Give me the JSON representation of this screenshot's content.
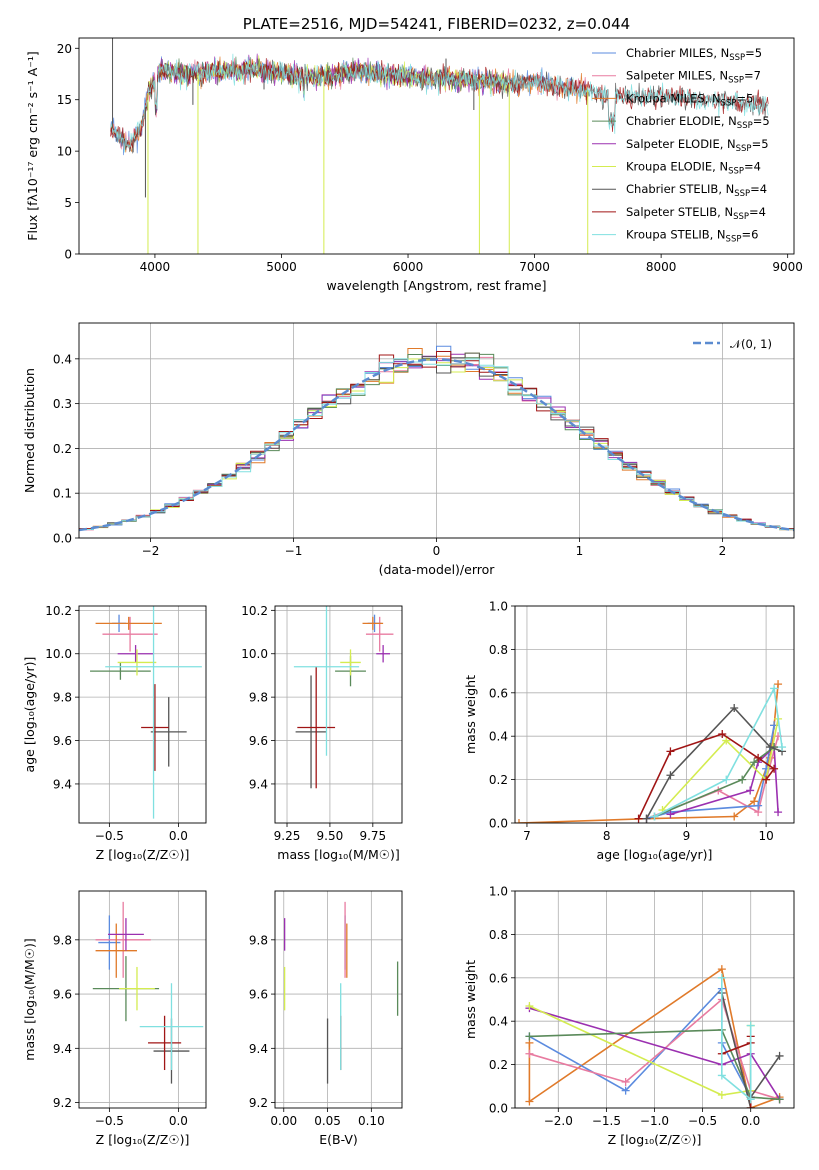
{
  "colors": {
    "chabrier_miles": "#5b8bdf",
    "salpeter_miles": "#e87ba0",
    "kroupa_miles": "#e07a2a",
    "chabrier_elodie": "#5a8a5a",
    "salpeter_elodie": "#9b30b0",
    "kroupa_elodie": "#d4ec50",
    "chabrier_stelib": "#555555",
    "salpeter_stelib": "#a01515",
    "kroupa_stelib": "#80e0e0"
  },
  "chart_data": [
    {
      "id": "spectrum",
      "type": "line",
      "title": "PLATE=2516, MJD=54241, FIBERID=0232, z=0.044",
      "xlabel": "wavelength [Angstrom, rest frame]",
      "ylabel": "Flux [fλ10⁻¹⁷ erg cm⁻² s⁻¹ A⁻¹]",
      "xlim": [
        3400,
        9050
      ],
      "ylim": [
        0,
        21
      ],
      "xticks": [
        "4000",
        "5000",
        "6000",
        "7000",
        "8000",
        "9000"
      ],
      "yticks": [
        "0",
        "5",
        "10",
        "15",
        "20"
      ],
      "legend_position": "top-right",
      "legend": [
        {
          "key": "chabrier_miles",
          "label": "Chabrier MILES, N",
          "sub": "SSP",
          "tail": "=5"
        },
        {
          "key": "salpeter_miles",
          "label": "Salpeter MILES, N",
          "sub": "SSP",
          "tail": "=7"
        },
        {
          "key": "kroupa_miles",
          "label": "Kroupa MILES, N",
          "sub": "SSP",
          "tail": "=5"
        },
        {
          "key": "chabrier_elodie",
          "label": "Chabrier ELODIE, N",
          "sub": "SSP",
          "tail": "=5"
        },
        {
          "key": "salpeter_elodie",
          "label": "Salpeter ELODIE, N",
          "sub": "SSP",
          "tail": "=5"
        },
        {
          "key": "kroupa_elodie",
          "label": "Kroupa ELODIE, N",
          "sub": "SSP",
          "tail": "=4"
        },
        {
          "key": "chabrier_stelib",
          "label": "Chabrier STELIB, N",
          "sub": "SSP",
          "tail": "=4"
        },
        {
          "key": "salpeter_stelib",
          "label": "Salpeter STELIB, N",
          "sub": "SSP",
          "tail": "=4"
        },
        {
          "key": "kroupa_stelib",
          "label": "Kroupa STELIB, N",
          "sub": "SSP",
          "tail": "=6"
        }
      ],
      "continuum": [
        [
          3650,
          12.5
        ],
        [
          3700,
          11.5
        ],
        [
          3800,
          10.5
        ],
        [
          3900,
          12.5
        ],
        [
          3950,
          16.0
        ],
        [
          4050,
          18.0
        ],
        [
          4200,
          17.5
        ],
        [
          4500,
          17.8
        ],
        [
          4800,
          18.0
        ],
        [
          5000,
          17.5
        ],
        [
          5300,
          17.2
        ],
        [
          5600,
          17.8
        ],
        [
          6000,
          17.2
        ],
        [
          6500,
          17.0
        ],
        [
          6800,
          16.5
        ],
        [
          7000,
          16.8
        ],
        [
          7200,
          16.2
        ],
        [
          7400,
          16.0
        ],
        [
          7500,
          15.5
        ],
        [
          8000,
          15.3
        ],
        [
          8500,
          14.8
        ],
        [
          8850,
          14.5
        ]
      ],
      "model_ranges": {
        "miles": [
          3650,
          7420
        ],
        "elodie": [
          3950,
          6800
        ],
        "stelib": [
          3650,
          8850
        ]
      },
      "spikes": [
        [
          3665,
          21
        ],
        [
          3925,
          5.5
        ],
        [
          3945,
          0
        ],
        [
          4102,
          18.5
        ],
        [
          4300,
          14.5
        ],
        [
          4340,
          0
        ],
        [
          4862,
          16
        ],
        [
          5335,
          0
        ],
        [
          6300,
          19
        ],
        [
          6520,
          14
        ],
        [
          6564,
          0
        ],
        [
          6800,
          0
        ],
        [
          7420,
          0
        ]
      ]
    },
    {
      "id": "residuals",
      "type": "histogram",
      "xlabel": "(data-model)/error",
      "ylabel": "Normed distribution",
      "xlim": [
        -2.5,
        2.5
      ],
      "ylim": [
        0,
        0.48
      ],
      "xticks": [
        "−2",
        "−1",
        "0",
        "1",
        "2"
      ],
      "yticks": [
        "0.0",
        "0.1",
        "0.2",
        "0.3",
        "0.4"
      ],
      "bin_width": 0.1,
      "legend_position": "top-right",
      "reference_curve": "normal",
      "legend_label": "𝒩(0, 1)"
    },
    {
      "id": "age_vs_z",
      "type": "errorbar",
      "xlabel": "Z [log₁₀(Z/Z☉)]",
      "ylabel": "age  [log₁₀(age/yr)]",
      "xlim": [
        -0.72,
        0.2
      ],
      "ylim": [
        9.22,
        10.22
      ],
      "xticks": [
        "−0.5",
        "0.0"
      ],
      "yticks": [
        "9.4",
        "9.6",
        "9.8",
        "10.0",
        "10.2"
      ],
      "points": [
        {
          "key": "chabrier_miles",
          "x": -0.43,
          "y": 10.14,
          "xerr": 0.05,
          "yerr": 0.04
        },
        {
          "key": "salpeter_miles",
          "x": -0.35,
          "y": 10.09,
          "xerr": 0.2,
          "yerr": 0.08
        },
        {
          "key": "kroupa_miles",
          "x": -0.36,
          "y": 10.14,
          "xerr": 0.24,
          "yerr": 0.03
        },
        {
          "key": "chabrier_elodie",
          "x": -0.42,
          "y": 9.92,
          "xerr": 0.22,
          "yerr": 0.04
        },
        {
          "key": "salpeter_elodie",
          "x": -0.31,
          "y": 10.0,
          "xerr": 0.13,
          "yerr": 0.04
        },
        {
          "key": "kroupa_elodie",
          "x": -0.3,
          "y": 9.96,
          "xerr": 0.14,
          "yerr": 0.06
        },
        {
          "key": "chabrier_stelib",
          "x": -0.07,
          "y": 9.64,
          "xerr": 0.13,
          "yerr": 0.16
        },
        {
          "key": "salpeter_stelib",
          "x": -0.17,
          "y": 9.66,
          "xerr": 0.1,
          "yerr": 0.2
        },
        {
          "key": "kroupa_stelib",
          "x": -0.18,
          "y": 9.94,
          "xerr": 0.35,
          "yerr": 0.7
        }
      ]
    },
    {
      "id": "age_vs_mass",
      "type": "errorbar",
      "xlabel": "mass [log₁₀(M/M☉)]",
      "ylabel": "",
      "xlim": [
        9.18,
        9.92
      ],
      "ylim": [
        9.22,
        10.22
      ],
      "xticks": [
        "9.25",
        "9.50",
        "9.75"
      ],
      "yticks": [
        "9.4",
        "9.6",
        "9.8",
        "10.0",
        "10.2"
      ],
      "points": [
        {
          "key": "chabrier_miles",
          "x": 9.76,
          "y": 10.14,
          "xerr": 0.04,
          "yerr": 0.04
        },
        {
          "key": "salpeter_miles",
          "x": 9.79,
          "y": 10.09,
          "xerr": 0.08,
          "yerr": 0.08
        },
        {
          "key": "kroupa_miles",
          "x": 9.75,
          "y": 10.14,
          "xerr": 0.06,
          "yerr": 0.03
        },
        {
          "key": "chabrier_elodie",
          "x": 9.62,
          "y": 9.92,
          "xerr": 0.09,
          "yerr": 0.07
        },
        {
          "key": "salpeter_elodie",
          "x": 9.81,
          "y": 10.0,
          "xerr": 0.04,
          "yerr": 0.04
        },
        {
          "key": "kroupa_elodie",
          "x": 9.62,
          "y": 9.96,
          "xerr": 0.06,
          "yerr": 0.06
        },
        {
          "key": "chabrier_stelib",
          "x": 9.39,
          "y": 9.64,
          "xerr": 0.09,
          "yerr": 0.26
        },
        {
          "key": "salpeter_stelib",
          "x": 9.42,
          "y": 9.66,
          "xerr": 0.11,
          "yerr": 0.28
        },
        {
          "key": "kroupa_stelib",
          "x": 9.48,
          "y": 9.94,
          "xerr": 0.19,
          "yerr": 0.41
        }
      ]
    },
    {
      "id": "weight_vs_age",
      "type": "line",
      "xlabel": "age  [log₁₀(age/yr)]",
      "ylabel": "mass weight",
      "xlim": [
        6.85,
        10.35
      ],
      "ylim": [
        0,
        1
      ],
      "xticks": [
        "7",
        "8",
        "9",
        "10"
      ],
      "yticks": [
        "0.0",
        "0.2",
        "0.4",
        "0.6",
        "0.8",
        "1.0"
      ],
      "series": [
        {
          "key": "kroupa_miles",
          "x": [
            6.9,
            8.5,
            9.6,
            9.85,
            10.05,
            10.1,
            10.15
          ],
          "y": [
            0.0,
            0.02,
            0.03,
            0.1,
            0.3,
            0.45,
            0.64
          ]
        },
        {
          "key": "salpeter_miles",
          "x": [
            8.5,
            9.4,
            9.9,
            10.0,
            10.15
          ],
          "y": [
            0.02,
            0.15,
            0.05,
            0.2,
            0.4
          ]
        },
        {
          "key": "chabrier_miles",
          "x": [
            8.5,
            8.8,
            9.9,
            10.0,
            10.1
          ],
          "y": [
            0.02,
            0.05,
            0.08,
            0.25,
            0.45
          ]
        },
        {
          "key": "salpeter_elodie",
          "x": [
            8.8,
            9.8,
            9.9,
            10.1,
            10.15
          ],
          "y": [
            0.04,
            0.15,
            0.28,
            0.35,
            0.05
          ]
        },
        {
          "key": "kroupa_elodie",
          "x": [
            8.7,
            9.5,
            10.0,
            10.15
          ],
          "y": [
            0.06,
            0.38,
            0.2,
            0.48
          ]
        },
        {
          "key": "chabrier_elodie",
          "x": [
            8.6,
            9.7,
            9.85,
            10.1
          ],
          "y": [
            0.03,
            0.2,
            0.28,
            0.35
          ]
        },
        {
          "key": "chabrier_stelib",
          "x": [
            8.5,
            8.8,
            9.6,
            10.05,
            10.2
          ],
          "y": [
            0.02,
            0.22,
            0.53,
            0.35,
            0.33
          ]
        },
        {
          "key": "salpeter_stelib",
          "x": [
            8.4,
            8.8,
            9.45,
            9.9,
            10.1,
            10.0
          ],
          "y": [
            0.02,
            0.33,
            0.41,
            0.3,
            0.25,
            0.2
          ]
        },
        {
          "key": "kroupa_stelib",
          "x": [
            8.6,
            9.5,
            10.1,
            10.2
          ],
          "y": [
            0.03,
            0.2,
            0.62,
            0.35
          ]
        }
      ]
    },
    {
      "id": "mass_vs_z",
      "type": "errorbar",
      "xlabel": "Z [log₁₀(Z/Z☉)]",
      "ylabel": "mass [log₁₀(M/M☉)]",
      "xlim": [
        -0.72,
        0.2
      ],
      "ylim": [
        9.18,
        9.98
      ],
      "xticks": [
        "−0.5",
        "0.0"
      ],
      "yticks": [
        "9.2",
        "9.4",
        "9.6",
        "9.8"
      ],
      "points": [
        {
          "key": "chabrier_miles",
          "x": -0.5,
          "y": 9.79,
          "xerr": 0.08,
          "yerr": 0.1
        },
        {
          "key": "salpeter_miles",
          "x": -0.4,
          "y": 9.8,
          "xerr": 0.2,
          "yerr": 0.14
        },
        {
          "key": "kroupa_miles",
          "x": -0.45,
          "y": 9.76,
          "xerr": 0.15,
          "yerr": 0.1
        },
        {
          "key": "chabrier_elodie",
          "x": -0.38,
          "y": 9.62,
          "xerr": 0.24,
          "yerr": 0.12
        },
        {
          "key": "salpeter_elodie",
          "x": -0.38,
          "y": 9.82,
          "xerr": 0.13,
          "yerr": 0.06
        },
        {
          "key": "kroupa_elodie",
          "x": -0.3,
          "y": 9.62,
          "xerr": 0.13,
          "yerr": 0.08
        },
        {
          "key": "chabrier_stelib",
          "x": -0.05,
          "y": 9.39,
          "xerr": 0.13,
          "yerr": 0.12
        },
        {
          "key": "salpeter_stelib",
          "x": -0.1,
          "y": 9.42,
          "xerr": 0.12,
          "yerr": 0.1
        },
        {
          "key": "kroupa_stelib",
          "x": -0.05,
          "y": 9.48,
          "xerr": 0.23,
          "yerr": 0.16
        }
      ]
    },
    {
      "id": "mass_vs_ebv",
      "type": "errorbar",
      "xlabel": "E(B-V)",
      "ylabel": "",
      "xlim": [
        -0.01,
        0.135
      ],
      "ylim": [
        9.18,
        9.98
      ],
      "xticks": [
        "0.00",
        "0.05",
        "0.10"
      ],
      "yticks": [
        "9.2",
        "9.4",
        "9.6",
        "9.8"
      ],
      "points": [
        {
          "key": "chabrier_miles",
          "x": 0.07,
          "y": 9.79,
          "xerr": 0,
          "yerr": 0.1
        },
        {
          "key": "salpeter_miles",
          "x": 0.07,
          "y": 9.8,
          "xerr": 0,
          "yerr": 0.14
        },
        {
          "key": "kroupa_miles",
          "x": 0.072,
          "y": 9.76,
          "xerr": 0,
          "yerr": 0.1
        },
        {
          "key": "chabrier_elodie",
          "x": 0.13,
          "y": 9.62,
          "xerr": 0,
          "yerr": 0.1
        },
        {
          "key": "salpeter_elodie",
          "x": 0.001,
          "y": 9.82,
          "xerr": 0,
          "yerr": 0.06
        },
        {
          "key": "kroupa_elodie",
          "x": 0.001,
          "y": 9.62,
          "xerr": 0,
          "yerr": 0.08
        },
        {
          "key": "chabrier_stelib",
          "x": 0.05,
          "y": 9.39,
          "xerr": 0,
          "yerr": 0.12
        },
        {
          "key": "salpeter_stelib",
          "x": 0.065,
          "y": 9.42,
          "xerr": 0,
          "yerr": 0.1
        },
        {
          "key": "kroupa_stelib",
          "x": 0.065,
          "y": 9.48,
          "xerr": 0,
          "yerr": 0.16
        }
      ]
    },
    {
      "id": "weight_vs_z",
      "type": "line",
      "xlabel": "Z [log₁₀(Z/Z☉)]",
      "ylabel": "mass weight",
      "xlim": [
        -2.45,
        0.45
      ],
      "ylim": [
        0,
        1
      ],
      "xticks": [
        "−2.0",
        "−1.5",
        "−1.0",
        "−0.5",
        "0.0"
      ],
      "yticks": [
        "0.0",
        "0.2",
        "0.4",
        "0.6",
        "0.8",
        "1.0"
      ],
      "series": [
        {
          "key": "kroupa_miles",
          "x": [
            -2.3,
            -2.3,
            -0.3,
            0.0,
            0.3
          ],
          "y": [
            0.3,
            0.03,
            0.64,
            0.0,
            0.05
          ]
        },
        {
          "key": "chabrier_miles",
          "x": [
            -2.3,
            -1.3,
            -0.3,
            -0.3,
            0.0
          ],
          "y": [
            0.33,
            0.08,
            0.55,
            0.3,
            0.05
          ]
        },
        {
          "key": "salpeter_miles",
          "x": [
            -2.3,
            -1.3,
            -0.3,
            0.0,
            0.3
          ],
          "y": [
            0.25,
            0.12,
            0.5,
            0.08,
            0.04
          ]
        },
        {
          "key": "salpeter_elodie",
          "x": [
            -2.3,
            -0.3,
            0.0,
            0.3
          ],
          "y": [
            0.46,
            0.2,
            0.25,
            0.04
          ]
        },
        {
          "key": "kroupa_elodie",
          "x": [
            -2.3,
            -0.3,
            0.0,
            0.0
          ],
          "y": [
            0.47,
            0.06,
            0.08,
            0.38
          ]
        },
        {
          "key": "chabrier_elodie",
          "x": [
            -2.3,
            -0.3,
            0.0,
            0.3
          ],
          "y": [
            0.33,
            0.36,
            0.05,
            0.04
          ]
        },
        {
          "key": "chabrier_stelib",
          "x": [
            -0.3,
            0.0,
            0.0,
            0.3
          ],
          "y": [
            0.53,
            0.0,
            0.05,
            0.24
          ]
        },
        {
          "key": "salpeter_stelib",
          "x": [
            -0.3,
            0.0,
            0.0,
            0.0
          ],
          "y": [
            0.25,
            0.3,
            0.33,
            0.0
          ]
        },
        {
          "key": "kroupa_stelib",
          "x": [
            -0.3,
            -0.3,
            0.0,
            0.0
          ],
          "y": [
            0.6,
            0.15,
            0.04,
            0.38
          ]
        }
      ]
    }
  ]
}
